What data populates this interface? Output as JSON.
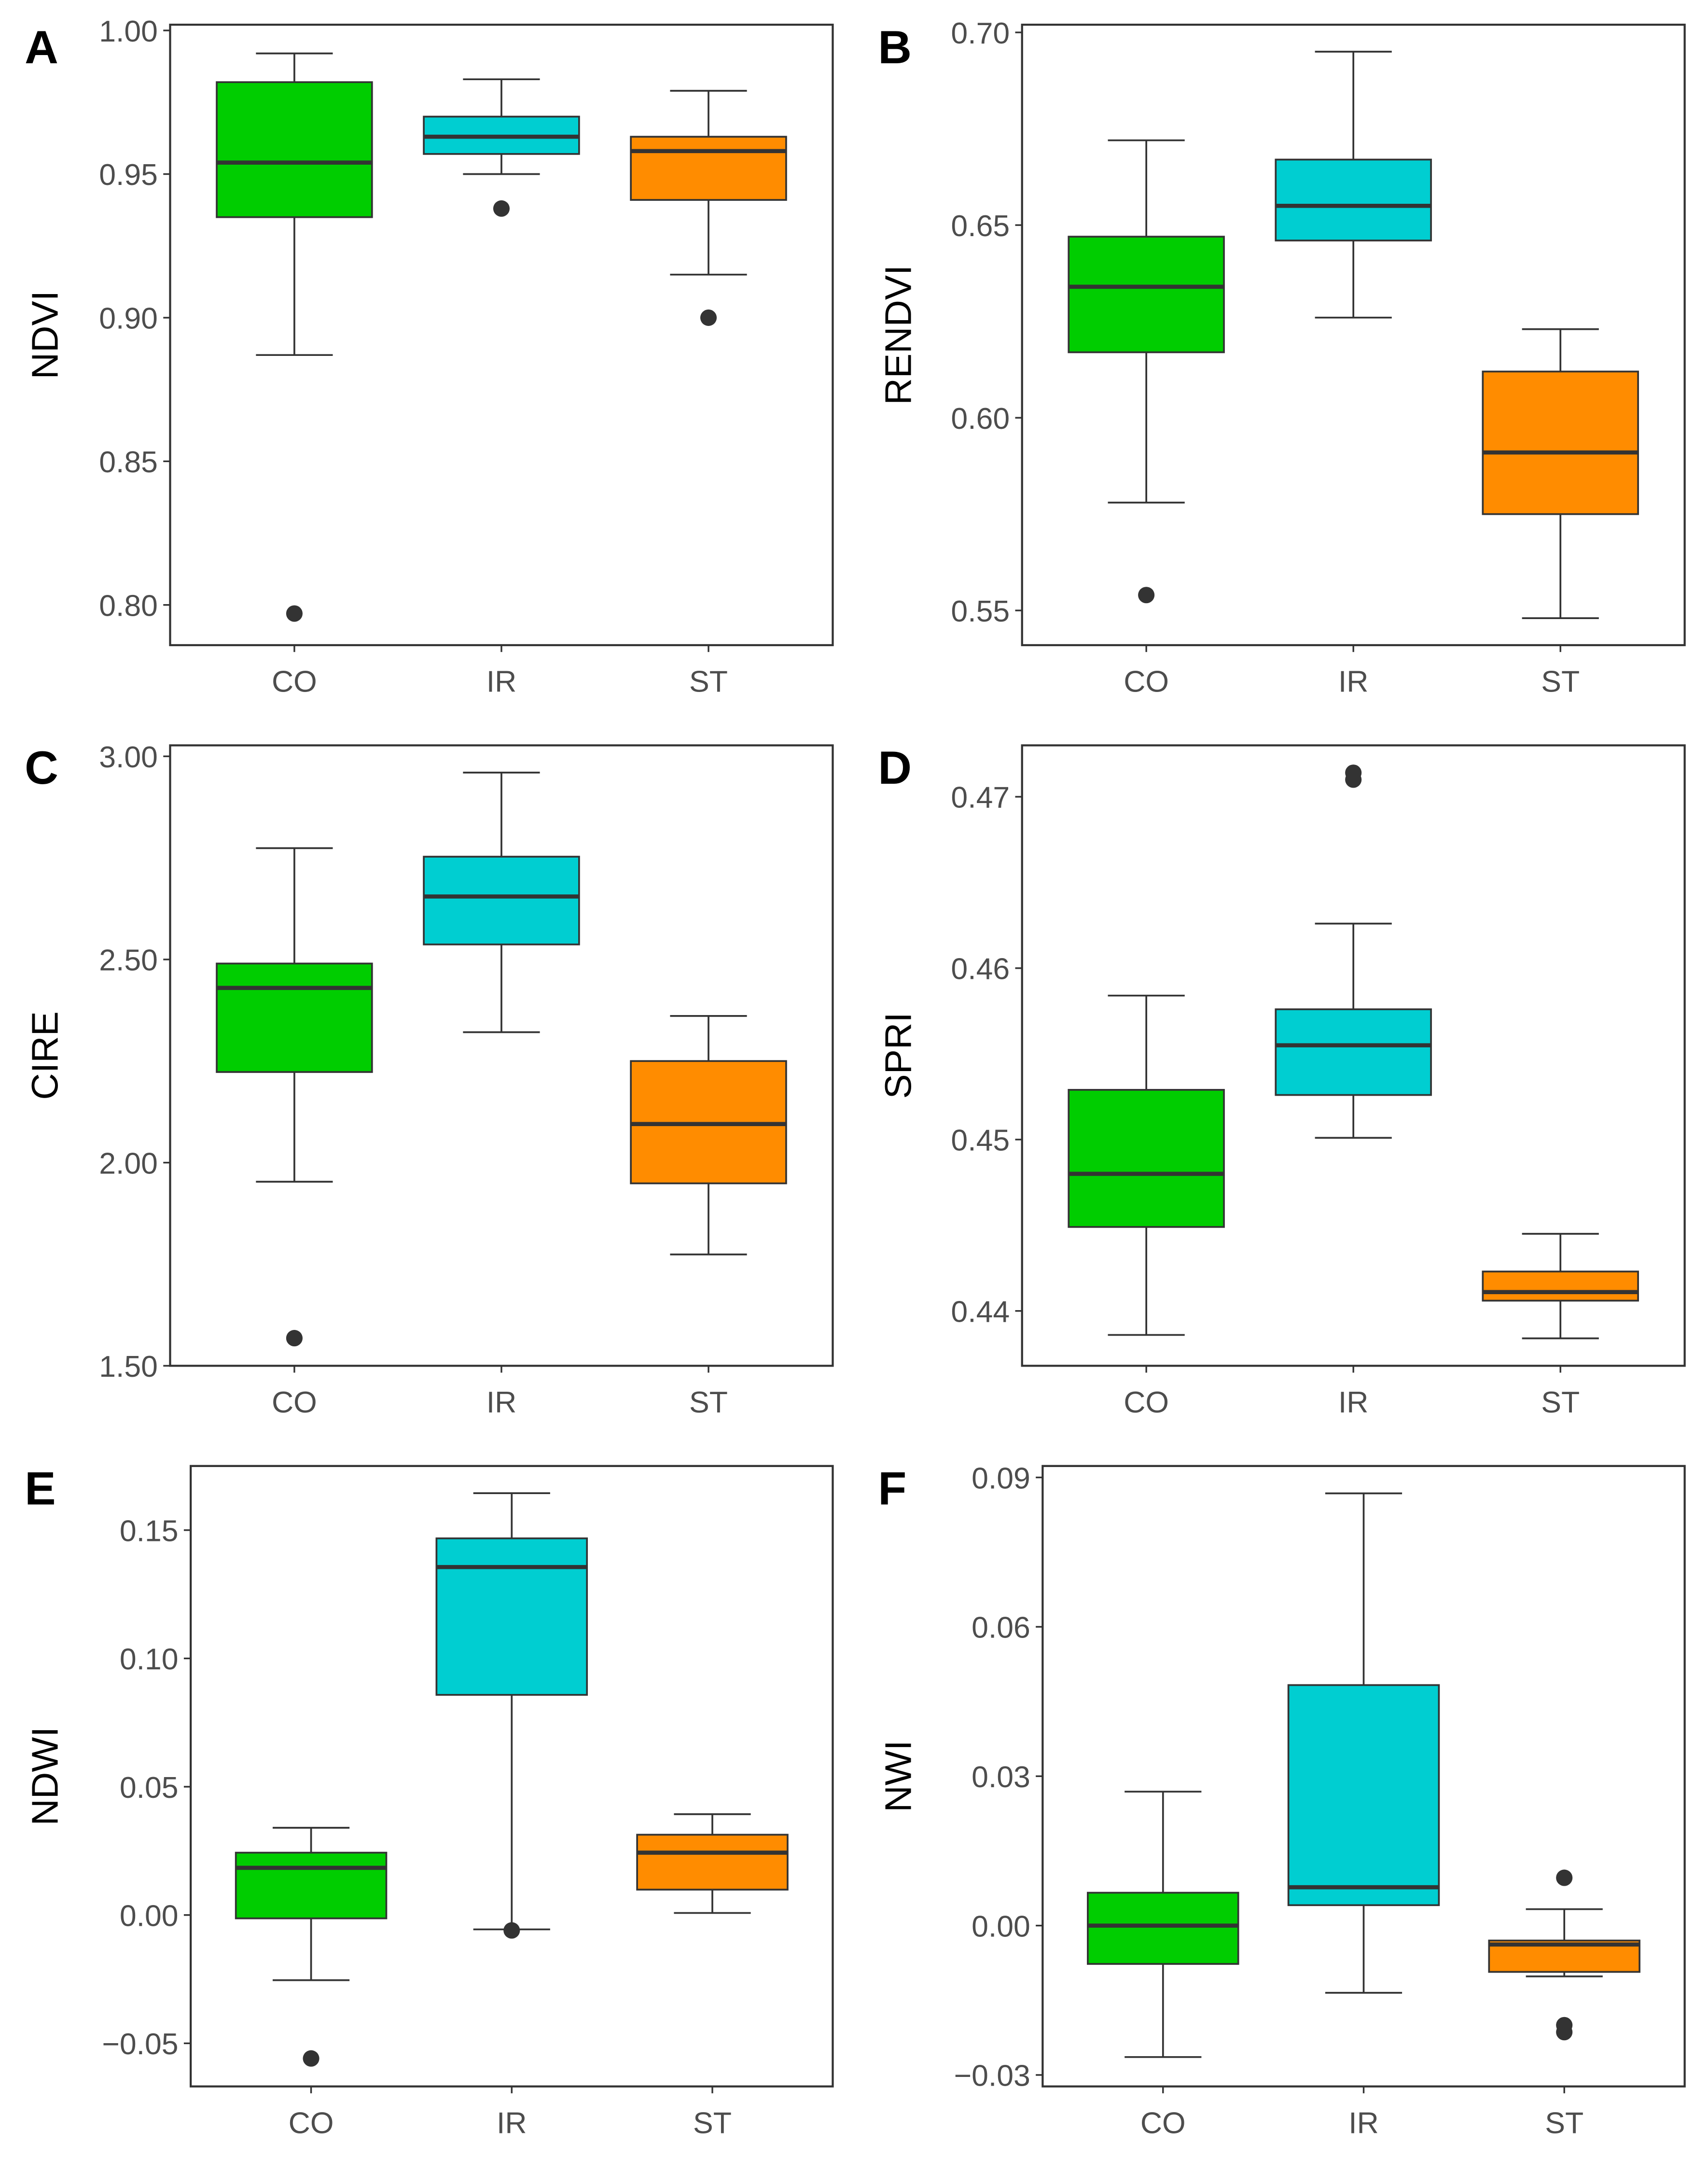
{
  "chart_data": [
    {
      "panel": "A",
      "type": "box",
      "ylabel": "NDVI",
      "categories": [
        "CO",
        "IR",
        "ST"
      ],
      "ylim": [
        0.786,
        1.002
      ],
      "yticks": [
        0.8,
        0.85,
        0.9,
        0.95,
        1.0
      ],
      "ytick_labels": [
        "0.80",
        "0.85",
        "0.90",
        "0.95",
        "1.00"
      ],
      "boxes": [
        {
          "category": "CO",
          "whisker_low": 0.887,
          "q1": 0.935,
          "median": 0.954,
          "q3": 0.982,
          "whisker_high": 0.992,
          "outliers": [
            0.797
          ]
        },
        {
          "category": "IR",
          "whisker_low": 0.95,
          "q1": 0.957,
          "median": 0.963,
          "q3": 0.97,
          "whisker_high": 0.983,
          "outliers": [
            0.938
          ]
        },
        {
          "category": "ST",
          "whisker_low": 0.915,
          "q1": 0.941,
          "median": 0.958,
          "q3": 0.963,
          "whisker_high": 0.979,
          "outliers": [
            0.9
          ]
        }
      ]
    },
    {
      "panel": "B",
      "type": "box",
      "ylabel": "RENDVI",
      "categories": [
        "CO",
        "IR",
        "ST"
      ],
      "ylim": [
        0.541,
        0.702
      ],
      "yticks": [
        0.55,
        0.6,
        0.65,
        0.7
      ],
      "ytick_labels": [
        "0.55",
        "0.60",
        "0.65",
        "0.70"
      ],
      "boxes": [
        {
          "category": "CO",
          "whisker_low": 0.578,
          "q1": 0.617,
          "median": 0.634,
          "q3": 0.647,
          "whisker_high": 0.672,
          "outliers": [
            0.554
          ]
        },
        {
          "category": "IR",
          "whisker_low": 0.626,
          "q1": 0.646,
          "median": 0.655,
          "q3": 0.667,
          "whisker_high": 0.695,
          "outliers": []
        },
        {
          "category": "ST",
          "whisker_low": 0.548,
          "q1": 0.575,
          "median": 0.591,
          "q3": 0.612,
          "whisker_high": 0.623,
          "outliers": []
        }
      ]
    },
    {
      "panel": "C",
      "type": "box",
      "ylabel": "CIRE",
      "categories": [
        "CO",
        "IR",
        "ST"
      ],
      "ylim": [
        1.5,
        3.027
      ],
      "yticks": [
        1.5,
        2.0,
        2.5,
        3.0
      ],
      "ytick_labels": [
        "1.50",
        "2.00",
        "2.50",
        "3.00"
      ],
      "boxes": [
        {
          "category": "CO",
          "whisker_low": 1.953,
          "q1": 2.223,
          "median": 2.43,
          "q3": 2.49,
          "whisker_high": 2.774,
          "outliers": [
            1.568
          ]
        },
        {
          "category": "IR",
          "whisker_low": 2.321,
          "q1": 2.537,
          "median": 2.655,
          "q3": 2.753,
          "whisker_high": 2.96,
          "outliers": []
        },
        {
          "category": "ST",
          "whisker_low": 1.774,
          "q1": 1.949,
          "median": 2.095,
          "q3": 2.25,
          "whisker_high": 2.361,
          "outliers": []
        }
      ]
    },
    {
      "panel": "D",
      "type": "box",
      "ylabel": "SPRI",
      "categories": [
        "CO",
        "IR",
        "ST"
      ],
      "ylim": [
        0.4368,
        0.473
      ],
      "yticks": [
        0.44,
        0.45,
        0.46,
        0.47
      ],
      "ytick_labels": [
        "0.44",
        "0.45",
        "0.46",
        "0.47"
      ],
      "boxes": [
        {
          "category": "CO",
          "whisker_low": 0.4386,
          "q1": 0.4449,
          "median": 0.448,
          "q3": 0.4529,
          "whisker_high": 0.4584,
          "outliers": []
        },
        {
          "category": "IR",
          "whisker_low": 0.4501,
          "q1": 0.4526,
          "median": 0.4555,
          "q3": 0.4576,
          "whisker_high": 0.4626,
          "outliers": [
            0.4714,
            0.471
          ]
        },
        {
          "category": "ST",
          "whisker_low": 0.4384,
          "q1": 0.4406,
          "median": 0.4411,
          "q3": 0.4423,
          "whisker_high": 0.4445,
          "outliers": []
        }
      ]
    },
    {
      "panel": "E",
      "type": "box",
      "ylabel": "NDWI",
      "categories": [
        "CO",
        "IR",
        "ST"
      ],
      "ylim": [
        -0.0668,
        0.175
      ],
      "yticks": [
        -0.05,
        0.0,
        0.05,
        0.1,
        0.15
      ],
      "ytick_labels": [
        "−0.05",
        "0.00",
        "0.05",
        "0.10",
        "0.15"
      ],
      "boxes": [
        {
          "category": "CO",
          "whisker_low": -0.0254,
          "q1": -0.0013,
          "median": 0.0184,
          "q3": 0.0243,
          "whisker_high": 0.034,
          "outliers": [
            -0.0559
          ]
        },
        {
          "category": "IR",
          "whisker_low": -0.0056,
          "q1": 0.0858,
          "median": 0.1356,
          "q3": 0.1468,
          "whisker_high": 0.1644,
          "outliers": [
            -0.006
          ]
        },
        {
          "category": "ST",
          "whisker_low": 0.0008,
          "q1": 0.0099,
          "median": 0.0243,
          "q3": 0.0313,
          "whisker_high": 0.0393,
          "outliers": []
        }
      ]
    },
    {
      "panel": "F",
      "type": "box",
      "ylabel": "NWI",
      "categories": [
        "CO",
        "IR",
        "ST"
      ],
      "ylim": [
        -0.0323,
        0.0923
      ],
      "yticks": [
        -0.03,
        0.0,
        0.03,
        0.06,
        0.09
      ],
      "ytick_labels": [
        "−0.03",
        "0.00",
        "0.03",
        "0.06",
        "0.09"
      ],
      "boxes": [
        {
          "category": "CO",
          "whisker_low": -0.0264,
          "q1": -0.0077,
          "median": 0.0,
          "q3": 0.0066,
          "whisker_high": 0.0269,
          "outliers": []
        },
        {
          "category": "IR",
          "whisker_low": -0.0135,
          "q1": 0.0041,
          "median": 0.0077,
          "q3": 0.0483,
          "whisker_high": 0.0868,
          "outliers": []
        },
        {
          "category": "ST",
          "whisker_low": -0.0102,
          "q1": -0.0093,
          "median": -0.0038,
          "q3": -0.003,
          "whisker_high": 0.0033,
          "outliers": [
            0.0096,
            -0.02,
            -0.0214
          ]
        }
      ]
    }
  ],
  "colors": {
    "CO": "#00CD00",
    "IR": "#00CED1",
    "ST": "#FF8C00",
    "line": "#333333",
    "frame": "#333333"
  }
}
